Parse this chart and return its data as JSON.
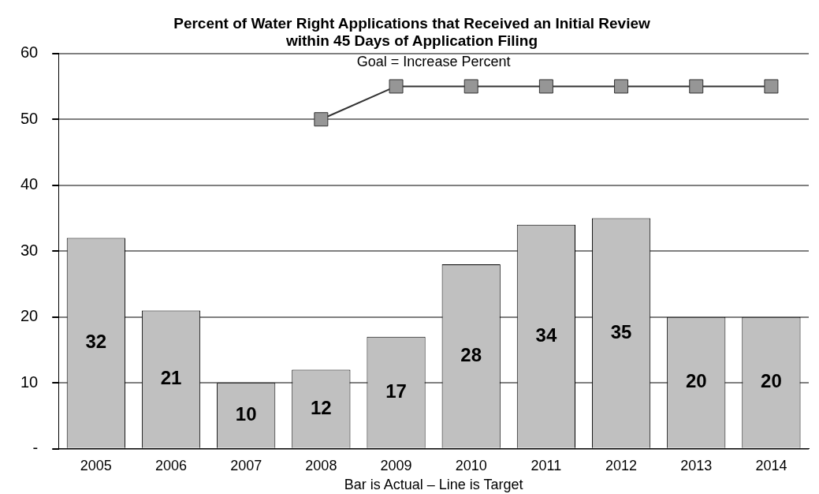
{
  "chart_data": {
    "type": "bar",
    "title": [
      "Percent of Water Right Applications that Received an Initial Review",
      "within 45 Days of Application Filing"
    ],
    "xlabel": "Bar is Actual – Line is Target",
    "annotations": [
      "Goal = Increase Percent"
    ],
    "categories": [
      "2005",
      "2006",
      "2007",
      "2008",
      "2009",
      "2010",
      "2011",
      "2012",
      "2013",
      "2014"
    ],
    "series": [
      {
        "color": "#c0c0c0",
        "values": [
          32,
          21,
          10,
          12,
          17,
          28,
          34,
          35,
          20,
          20
        ],
        "value_labels": [
          "32",
          "21",
          "10",
          "12",
          "17",
          "28",
          "34",
          "35",
          "20",
          "20"
        ]
      },
      {
        "type": "line",
        "color": "#969696",
        "marker": "square",
        "values": [
          null,
          null,
          null,
          50,
          55,
          55,
          55,
          55,
          55,
          55
        ]
      }
    ],
    "ylim": [
      0,
      60
    ],
    "yticks": [
      {
        "value": 0,
        "label": "-"
      },
      10,
      20,
      30,
      40,
      50,
      60
    ],
    "grid": "y",
    "legend": false
  }
}
